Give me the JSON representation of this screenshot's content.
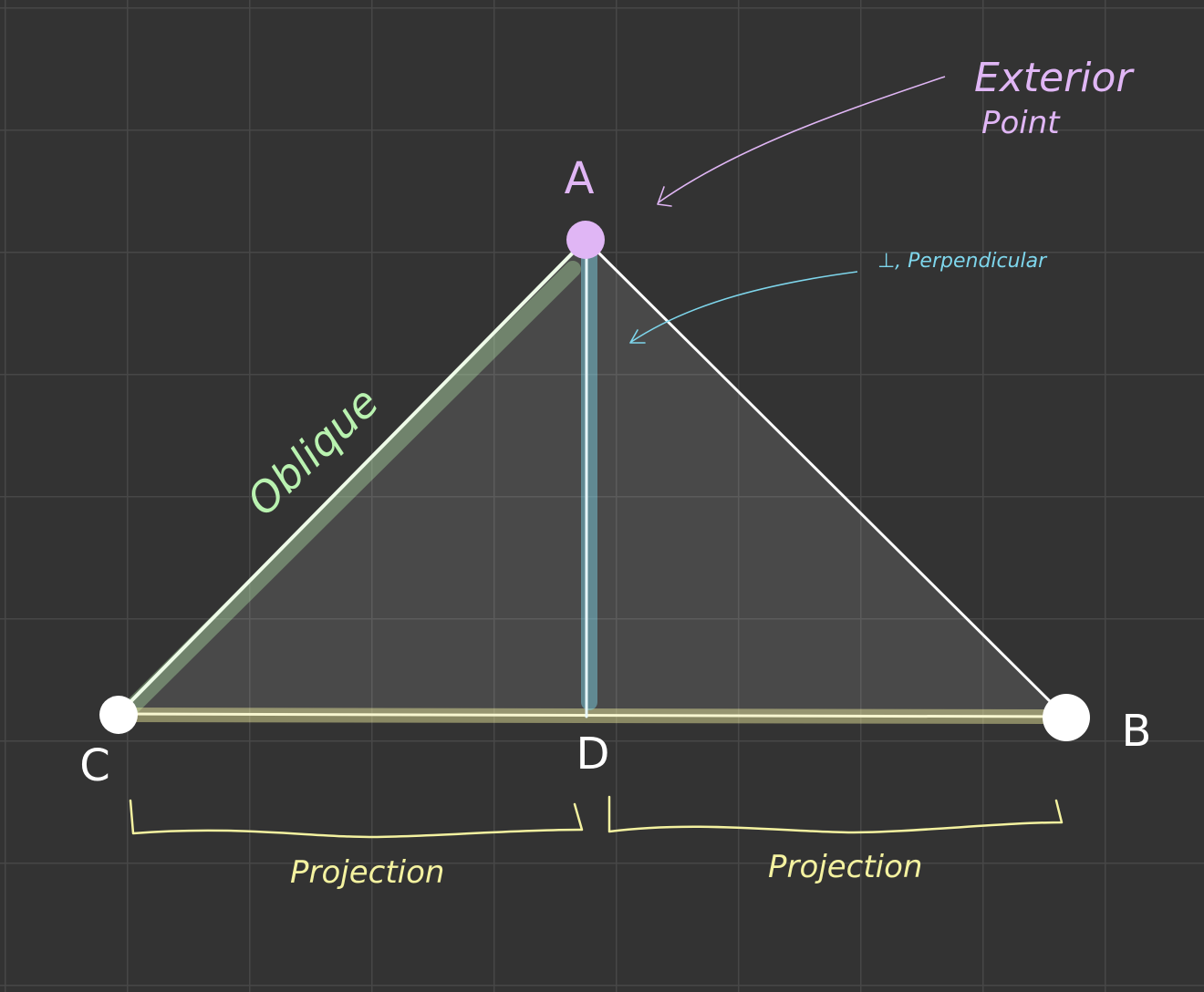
{
  "diagram": {
    "colors": {
      "background": "#333333",
      "grid": "#474747",
      "triangle_fill": "#4a4a4a",
      "white": "#ffffff",
      "purple": "#e0b6f5",
      "green": "#b9f2b0",
      "cyan": "#7ed6ec",
      "yellow": "#f4f2a0"
    },
    "vertices": {
      "A": "A",
      "B": "B",
      "C": "C",
      "D": "D"
    },
    "annotations": {
      "exterior_line1": "Exterior",
      "exterior_line2": "Point",
      "perpendicular": "⊥, Perpendicular",
      "oblique": "Oblique",
      "projection_left": "Projection",
      "projection_right": "Projection"
    }
  }
}
